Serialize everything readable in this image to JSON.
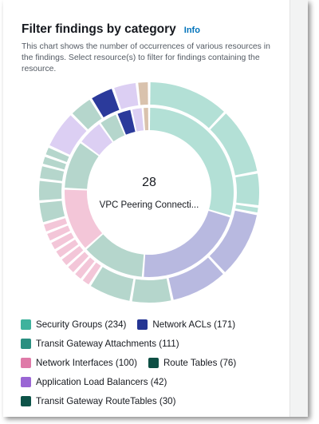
{
  "header": {
    "title": "Filter findings by category",
    "info_label": "Info",
    "description": "This chart shows the number of occurrences of various resources in the findings. Select resource(s) to filter for findings containing the resource."
  },
  "chart_data": {
    "type": "pie",
    "center_value": "28",
    "center_label": "VPC Peering Connecti...",
    "series": [
      {
        "name": "Security Groups",
        "value": 234,
        "color": "#6ec4b4"
      },
      {
        "name": "Network ACLs",
        "value": 171,
        "color": "#2e3b9e"
      },
      {
        "name": "Transit Gateway Attachments",
        "value": 111,
        "color": "#2a8f80"
      },
      {
        "name": "Network Interfaces",
        "value": 100,
        "color": "#e98fb5"
      },
      {
        "name": "Route Tables",
        "value": 76,
        "color": "#0e4f44"
      },
      {
        "name": "Application Load Balancers",
        "value": 42,
        "color": "#9d6cd6"
      },
      {
        "name": "Transit Gateway RouteTables",
        "value": 30,
        "color": "#0e5a4e"
      }
    ]
  },
  "legend": [
    {
      "label": "Security Groups (234)",
      "color": "#3fb29d"
    },
    {
      "label": "Network ACLs (171)",
      "color": "#253593"
    },
    {
      "label": "Transit Gateway Attachments (111)",
      "color": "#2a8f80"
    },
    {
      "label": "Network Interfaces (100)",
      "color": "#df7aa8"
    },
    {
      "label": "Route Tables (76)",
      "color": "#0e4f44"
    },
    {
      "label": "Application Load Balancers (42)",
      "color": "#9a66d4"
    },
    {
      "label": "Transit Gateway RouteTables (30)",
      "color": "#0d5348"
    }
  ]
}
